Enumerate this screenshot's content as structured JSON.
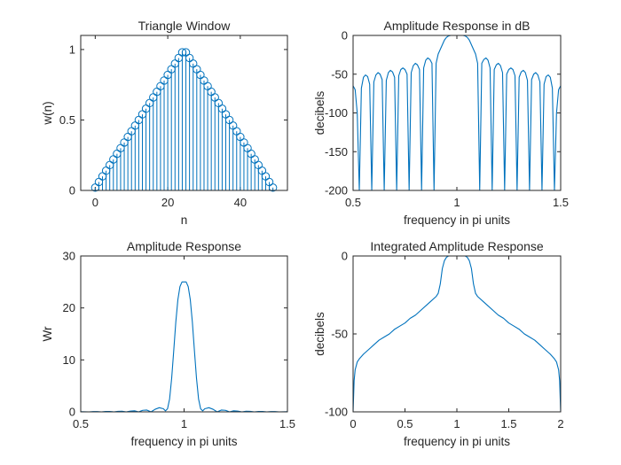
{
  "figure": {
    "line_color": "#0072BD",
    "background": "#ffffff",
    "axes_color": "#262626"
  },
  "chart_data": [
    {
      "id": "triangle-window",
      "type": "stem",
      "title": "Triangle Window",
      "xlabel": "n",
      "ylabel": "w(n)",
      "xlim": [
        -4,
        53
      ],
      "ylim": [
        0,
        1.1
      ],
      "xticks": [
        0,
        20,
        40
      ],
      "xtick_labels": [
        "0",
        "20",
        "40"
      ],
      "yticks": [
        0,
        0.5,
        1
      ],
      "ytick_labels": [
        "0",
        "0.5",
        "1"
      ],
      "x": [
        0,
        1,
        2,
        3,
        4,
        5,
        6,
        7,
        8,
        9,
        10,
        11,
        12,
        13,
        14,
        15,
        16,
        17,
        18,
        19,
        20,
        21,
        22,
        23,
        24,
        25,
        26,
        27,
        28,
        29,
        30,
        31,
        32,
        33,
        34,
        35,
        36,
        37,
        38,
        39,
        40,
        41,
        42,
        43,
        44,
        45,
        46,
        47,
        48,
        49
      ],
      "y": [
        0.02,
        0.06,
        0.1,
        0.14,
        0.18,
        0.22,
        0.26,
        0.3,
        0.34,
        0.38,
        0.42,
        0.46,
        0.5,
        0.54,
        0.58,
        0.62,
        0.66,
        0.7,
        0.74,
        0.78,
        0.82,
        0.86,
        0.9,
        0.94,
        0.98,
        0.98,
        0.94,
        0.9,
        0.86,
        0.82,
        0.78,
        0.74,
        0.7,
        0.66,
        0.62,
        0.58,
        0.54,
        0.5,
        0.46,
        0.42,
        0.38,
        0.34,
        0.3,
        0.26,
        0.22,
        0.18,
        0.14,
        0.1,
        0.06,
        0.02
      ]
    },
    {
      "id": "amplitude-response-db",
      "type": "line",
      "title": "Amplitude Response in dB",
      "xlabel": "frequency in pi units",
      "ylabel": "decibels",
      "xlim": [
        0.5,
        1.5
      ],
      "ylim": [
        -200,
        0
      ],
      "xticks": [
        0.5,
        1,
        1.5
      ],
      "xtick_labels": [
        "0.5",
        "1",
        "1.5"
      ],
      "yticks": [
        -200,
        -150,
        -100,
        -50,
        0
      ],
      "ytick_labels": [
        "-200",
        "-150",
        "-100",
        "-50",
        "0"
      ],
      "series": [
        {
          "x": [
            0.5,
            0.51,
            0.52,
            0.53,
            0.54,
            0.55,
            0.56,
            0.57,
            0.58,
            0.59,
            0.6,
            0.61,
            0.62,
            0.63,
            0.64,
            0.65,
            0.66,
            0.67,
            0.68,
            0.69,
            0.7,
            0.71,
            0.72,
            0.73,
            0.74,
            0.75,
            0.76,
            0.77,
            0.78,
            0.79,
            0.8,
            0.81,
            0.82,
            0.83,
            0.84,
            0.85,
            0.86,
            0.87,
            0.88,
            0.89,
            0.9,
            0.91,
            0.92,
            0.93,
            0.94,
            0.95,
            0.96,
            0.97,
            0.98,
            0.99,
            1,
            1.01,
            1.02,
            1.03,
            1.04,
            1.05,
            1.06,
            1.07,
            1.08,
            1.09,
            1.1,
            1.11,
            1.12,
            1.13,
            1.14,
            1.15,
            1.16,
            1.17,
            1.18,
            1.19,
            1.2,
            1.21,
            1.22,
            1.23,
            1.24,
            1.25,
            1.26,
            1.27,
            1.28,
            1.29,
            1.3,
            1.31,
            1.32,
            1.33,
            1.34,
            1.35,
            1.36,
            1.37,
            1.38,
            1.39,
            1.4,
            1.41,
            1.42,
            1.43,
            1.44,
            1.45,
            1.46,
            1.47,
            1.48,
            1.49,
            1.5
          ],
          "y": [
            -65,
            -70,
            -100,
            -200,
            -68,
            -54,
            -51,
            -53,
            -63,
            -200,
            -60,
            -51,
            -48,
            -50,
            -57,
            -200,
            -58,
            -48,
            -45,
            -47,
            -54,
            -200,
            -52,
            -44,
            -42,
            -44,
            -50,
            -200,
            -48,
            -39,
            -36,
            -38,
            -44,
            -200,
            -42,
            -32,
            -29,
            -31,
            -36,
            -200,
            -36,
            -24,
            -18,
            -12,
            -6,
            -2.5,
            -0.6,
            0,
            0,
            0,
            0,
            0,
            0,
            0,
            -0.6,
            -2.5,
            -6,
            -12,
            -18,
            -24,
            -36,
            -200,
            -36,
            -31,
            -29,
            -32,
            -42,
            -200,
            -44,
            -38,
            -36,
            -39,
            -48,
            -200,
            -50,
            -44,
            -42,
            -44,
            -52,
            -200,
            -54,
            -47,
            -45,
            -48,
            -58,
            -200,
            -57,
            -50,
            -48,
            -51,
            -60,
            -200,
            -63,
            -53,
            -51,
            -54,
            -68,
            -200,
            -100,
            -70,
            -65
          ]
        }
      ]
    },
    {
      "id": "amplitude-response",
      "type": "line",
      "title": "Amplitude Response",
      "xlabel": "frequency in pi units",
      "ylabel": "Wr",
      "xlim": [
        0.5,
        1.5
      ],
      "ylim": [
        0,
        30
      ],
      "xticks": [
        0.5,
        1,
        1.5
      ],
      "xtick_labels": [
        "0.5",
        "1",
        "1.5"
      ],
      "yticks": [
        0,
        10,
        20,
        30
      ],
      "ytick_labels": [
        "0",
        "10",
        "20",
        "30"
      ],
      "series": [
        {
          "x": [
            0.5,
            0.52,
            0.54,
            0.56,
            0.58,
            0.6,
            0.62,
            0.64,
            0.66,
            0.68,
            0.7,
            0.72,
            0.74,
            0.76,
            0.78,
            0.8,
            0.82,
            0.84,
            0.86,
            0.88,
            0.9,
            0.91,
            0.92,
            0.93,
            0.94,
            0.95,
            0.96,
            0.97,
            0.98,
            0.99,
            1,
            1.01,
            1.02,
            1.03,
            1.04,
            1.05,
            1.06,
            1.07,
            1.08,
            1.09,
            1.1,
            1.12,
            1.14,
            1.16,
            1.18,
            1.2,
            1.22,
            1.24,
            1.26,
            1.28,
            1.3,
            1.32,
            1.34,
            1.36,
            1.38,
            1.4,
            1.42,
            1.44,
            1.46,
            1.48,
            1.5
          ],
          "y": [
            0.04,
            0.02,
            0,
            0.05,
            0.06,
            0,
            0.07,
            0.08,
            0,
            0.1,
            0.12,
            0,
            0.15,
            0.2,
            0,
            0.3,
            0.35,
            0,
            0.5,
            0.8,
            0.6,
            0.2,
            0.6,
            2.5,
            6.5,
            11.8,
            17.3,
            21.6,
            24.1,
            25,
            25,
            25,
            24.1,
            21.6,
            17.3,
            11.8,
            6.5,
            2.5,
            0.6,
            0.2,
            0.6,
            0.8,
            0.5,
            0,
            0.35,
            0.3,
            0,
            0.2,
            0.15,
            0,
            0.12,
            0.1,
            0,
            0.08,
            0.07,
            0,
            0.06,
            0.05,
            0,
            0.02,
            0.04
          ]
        }
      ]
    },
    {
      "id": "integrated-amplitude-response",
      "type": "line",
      "title": "Integrated Amplitude Response",
      "xlabel": "frequency in pi units",
      "ylabel": "decibels",
      "xlim": [
        0,
        2
      ],
      "ylim": [
        -100,
        0
      ],
      "xticks": [
        0,
        0.5,
        1,
        1.5,
        2
      ],
      "xtick_labels": [
        "0",
        "0.5",
        "1",
        "1.5",
        "2"
      ],
      "yticks": [
        -100,
        -50,
        0
      ],
      "ytick_labels": [
        "-100",
        "-50",
        "0"
      ],
      "series": [
        {
          "x": [
            0,
            0.01,
            0.02,
            0.04,
            0.06,
            0.1,
            0.15,
            0.2,
            0.25,
            0.3,
            0.35,
            0.4,
            0.45,
            0.5,
            0.55,
            0.6,
            0.65,
            0.7,
            0.75,
            0.8,
            0.82,
            0.84,
            0.86,
            0.88,
            0.9,
            0.92,
            0.94,
            0.96,
            0.98,
            1,
            1.02,
            1.04,
            1.06,
            1.08,
            1.1,
            1.12,
            1.14,
            1.16,
            1.18,
            1.2,
            1.25,
            1.3,
            1.35,
            1.4,
            1.45,
            1.5,
            1.55,
            1.6,
            1.65,
            1.7,
            1.75,
            1.8,
            1.85,
            1.9,
            1.94,
            1.96,
            1.98,
            1.99,
            2
          ],
          "y": [
            -100,
            -80,
            -73,
            -68,
            -66,
            -63,
            -60,
            -57,
            -54,
            -52,
            -50,
            -47,
            -45,
            -43,
            -40,
            -38,
            -35,
            -32,
            -29,
            -26,
            -24,
            -18,
            -8,
            -3,
            -0.8,
            0,
            0,
            0,
            0,
            0,
            0,
            0,
            0,
            0,
            -0.8,
            -3,
            -8,
            -18,
            -24,
            -26,
            -29,
            -32,
            -35,
            -38,
            -40,
            -43,
            -45,
            -47,
            -50,
            -52,
            -54,
            -57,
            -60,
            -63,
            -66,
            -68,
            -73,
            -80,
            -100
          ]
        }
      ]
    }
  ]
}
